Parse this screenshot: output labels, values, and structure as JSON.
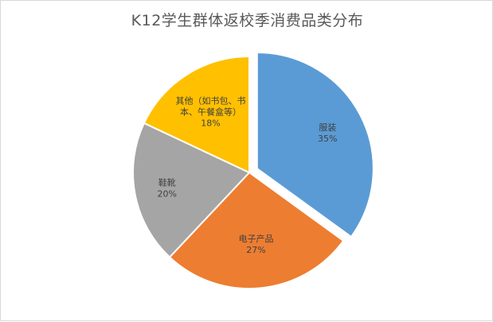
{
  "chart_data": {
    "type": "pie",
    "title": "K12学生群体返校季消费品类分布",
    "categories": [
      "服装",
      "电子产品",
      "鞋靴",
      "其他（如书包、书本、午餐盒等）"
    ],
    "values": [
      35,
      27,
      20,
      18
    ],
    "value_labels": [
      "35%",
      "27%",
      "20%",
      "18%"
    ],
    "label_lines": [
      [
        "服装"
      ],
      [
        "电子产品"
      ],
      [
        "鞋靴"
      ],
      [
        "其他（如书包、书",
        "本、午餐盒等）"
      ]
    ],
    "colors": [
      "#5b9bd5",
      "#ed7d31",
      "#a5a5a5",
      "#ffc000"
    ],
    "exploded_slice": 0,
    "legend": "none"
  }
}
